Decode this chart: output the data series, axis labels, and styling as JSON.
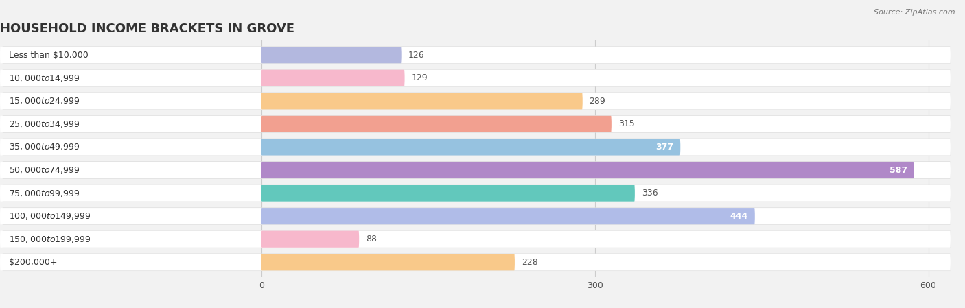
{
  "title": "HOUSEHOLD INCOME BRACKETS IN GROVE",
  "source": "Source: ZipAtlas.com",
  "categories": [
    "Less than $10,000",
    "$10,000 to $14,999",
    "$15,000 to $24,999",
    "$25,000 to $34,999",
    "$35,000 to $49,999",
    "$50,000 to $74,999",
    "$75,000 to $99,999",
    "$100,000 to $149,999",
    "$150,000 to $199,999",
    "$200,000+"
  ],
  "values": [
    126,
    129,
    289,
    315,
    377,
    587,
    336,
    444,
    88,
    228
  ],
  "bar_colors": [
    "#b3b8df",
    "#f7b8cc",
    "#f9c98a",
    "#f2a090",
    "#96c2e0",
    "#b088c8",
    "#62c8bc",
    "#b0bce8",
    "#f7b8cc",
    "#f9c98a"
  ],
  "label_inside": [
    false,
    false,
    false,
    false,
    true,
    true,
    false,
    true,
    false,
    false
  ],
  "label_color_inside": "#ffffff",
  "label_color_outside": "#555555",
  "bg_color": "#f2f2f2",
  "row_bg_color": "#ffffff",
  "row_shadow_color": "#dddddd",
  "xlim_left": -235,
  "xlim_right": 620,
  "data_zero": 0,
  "xticks": [
    0,
    300,
    600
  ],
  "xtick_labels": [
    "0",
    "300",
    "600"
  ],
  "title_fontsize": 13,
  "label_fontsize": 9,
  "value_fontsize": 9,
  "source_fontsize": 8
}
